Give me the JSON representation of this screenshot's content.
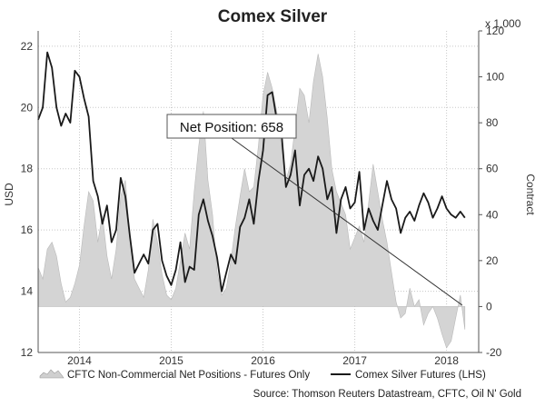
{
  "chart_data": {
    "type": "line",
    "title": "Comex Silver",
    "ylabel_left": "USD",
    "ylabel_right": "Contract",
    "right_multiplier": "x 1,000",
    "ylim_left": [
      12,
      22.5
    ],
    "ylim_right": [
      -20,
      120
    ],
    "xlim": [
      2013.55,
      2018.35
    ],
    "left_ticks": [
      "12",
      "14",
      "16",
      "18",
      "20",
      "22"
    ],
    "right_ticks": [
      "-20",
      "0",
      "20",
      "40",
      "60",
      "80",
      "100",
      "120"
    ],
    "x_ticks": [
      {
        "label": "2014",
        "value": 2014.0
      },
      {
        "label": "2015",
        "value": 2015.0
      },
      {
        "label": "2016",
        "value": 2016.0
      },
      {
        "label": "2017",
        "value": 2017.0
      },
      {
        "label": "2018",
        "value": 2018.0
      }
    ],
    "grid": true,
    "annotation": {
      "text": "Net Position: 658",
      "x": 2016.05,
      "value": 0.658,
      "arrow_to": [
        2018.17,
        0.658
      ]
    },
    "series": [
      {
        "name": "CFTC Non-Commercial Net Positions - Futures Only",
        "axis": "right",
        "kind": "area",
        "color": "#d4d4d4",
        "x": [
          2013.55,
          2013.6,
          2013.65,
          2013.7,
          2013.75,
          2013.8,
          2013.85,
          2013.9,
          2013.95,
          2014.0,
          2014.05,
          2014.1,
          2014.15,
          2014.2,
          2014.25,
          2014.3,
          2014.35,
          2014.4,
          2014.45,
          2014.5,
          2014.55,
          2014.6,
          2014.65,
          2014.7,
          2014.75,
          2014.8,
          2014.85,
          2014.9,
          2014.95,
          2015.0,
          2015.05,
          2015.1,
          2015.15,
          2015.2,
          2015.25,
          2015.3,
          2015.35,
          2015.4,
          2015.45,
          2015.5,
          2015.55,
          2015.6,
          2015.65,
          2015.7,
          2015.75,
          2015.8,
          2015.85,
          2015.9,
          2015.95,
          2016.0,
          2016.05,
          2016.1,
          2016.15,
          2016.2,
          2016.25,
          2016.3,
          2016.35,
          2016.4,
          2016.45,
          2016.5,
          2016.55,
          2016.6,
          2016.65,
          2016.7,
          2016.75,
          2016.8,
          2016.85,
          2016.9,
          2016.95,
          2017.0,
          2017.05,
          2017.1,
          2017.15,
          2017.2,
          2017.25,
          2017.3,
          2017.35,
          2017.4,
          2017.45,
          2017.5,
          2017.55,
          2017.6,
          2017.65,
          2017.7,
          2017.75,
          2017.8,
          2017.85,
          2017.9,
          2017.95,
          2018.0,
          2018.05,
          2018.1,
          2018.15,
          2018.2
        ],
        "values": [
          17,
          12,
          25,
          28,
          22,
          10,
          2,
          4,
          10,
          18,
          35,
          50,
          46,
          28,
          40,
          22,
          12,
          25,
          48,
          55,
          30,
          12,
          8,
          4,
          16,
          38,
          28,
          14,
          5,
          3,
          8,
          20,
          32,
          25,
          50,
          70,
          85,
          55,
          40,
          15,
          5,
          8,
          20,
          35,
          48,
          60,
          50,
          52,
          70,
          92,
          102,
          95,
          85,
          70,
          55,
          62,
          78,
          95,
          92,
          80,
          98,
          110,
          100,
          82,
          60,
          50,
          45,
          40,
          25,
          30,
          35,
          28,
          45,
          62,
          50,
          38,
          28,
          15,
          2,
          -5,
          -3,
          8,
          0,
          3,
          -8,
          -3,
          0,
          -5,
          -12,
          -18,
          -15,
          -5,
          5,
          -10
        ]
      },
      {
        "name": "Comex Silver Futures (LHS)",
        "axis": "left",
        "kind": "line",
        "color": "#1a1a1a",
        "x": [
          2013.55,
          2013.6,
          2013.65,
          2013.7,
          2013.75,
          2013.8,
          2013.85,
          2013.9,
          2013.95,
          2014.0,
          2014.05,
          2014.1,
          2014.15,
          2014.2,
          2014.25,
          2014.3,
          2014.35,
          2014.4,
          2014.45,
          2014.5,
          2014.55,
          2014.6,
          2014.65,
          2014.7,
          2014.75,
          2014.8,
          2014.85,
          2014.9,
          2014.95,
          2015.0,
          2015.05,
          2015.1,
          2015.15,
          2015.2,
          2015.25,
          2015.3,
          2015.35,
          2015.4,
          2015.45,
          2015.5,
          2015.55,
          2015.6,
          2015.65,
          2015.7,
          2015.75,
          2015.8,
          2015.85,
          2015.9,
          2015.95,
          2016.0,
          2016.05,
          2016.1,
          2016.15,
          2016.2,
          2016.25,
          2016.3,
          2016.35,
          2016.4,
          2016.45,
          2016.5,
          2016.55,
          2016.6,
          2016.65,
          2016.7,
          2016.75,
          2016.8,
          2016.85,
          2016.9,
          2016.95,
          2017.0,
          2017.05,
          2017.1,
          2017.15,
          2017.2,
          2017.25,
          2017.3,
          2017.35,
          2017.4,
          2017.45,
          2017.5,
          2017.55,
          2017.6,
          2017.65,
          2017.7,
          2017.75,
          2017.8,
          2017.85,
          2017.9,
          2017.95,
          2018.0,
          2018.05,
          2018.1,
          2018.15,
          2018.2
        ],
        "values": [
          19.6,
          20.0,
          21.8,
          21.3,
          20.0,
          19.4,
          19.8,
          19.5,
          21.2,
          21.0,
          20.3,
          19.7,
          17.6,
          17.1,
          16.2,
          16.8,
          15.6,
          16.0,
          17.7,
          17.1,
          15.8,
          14.6,
          14.9,
          15.2,
          14.9,
          16.0,
          16.2,
          15.0,
          14.5,
          14.2,
          14.7,
          15.6,
          14.3,
          14.8,
          14.7,
          16.5,
          17.0,
          16.3,
          15.8,
          15.1,
          14.0,
          14.6,
          15.2,
          14.9,
          16.1,
          16.4,
          17.0,
          16.2,
          17.6,
          18.6,
          20.4,
          20.5,
          19.6,
          19.2,
          17.4,
          17.8,
          18.6,
          16.8,
          17.8,
          18.0,
          17.6,
          18.4,
          18.0,
          17.0,
          17.4,
          15.9,
          17.0,
          17.4,
          16.7,
          16.9,
          17.9,
          16.0,
          16.7,
          16.3,
          16.0,
          16.8,
          17.6,
          17.0,
          16.7,
          15.9,
          16.4,
          16.6,
          16.3,
          16.8,
          17.2,
          16.9,
          16.4,
          16.7,
          17.1,
          16.7,
          16.5,
          16.4,
          16.6,
          16.4
        ]
      }
    ]
  },
  "legend": {
    "area_label": "CFTC Non-Commercial Net Positions - Futures Only",
    "line_label": "Comex Silver Futures (LHS)"
  },
  "source": "Source: Thomson Reuters Datastream, CFTC, Oil N' Gold"
}
